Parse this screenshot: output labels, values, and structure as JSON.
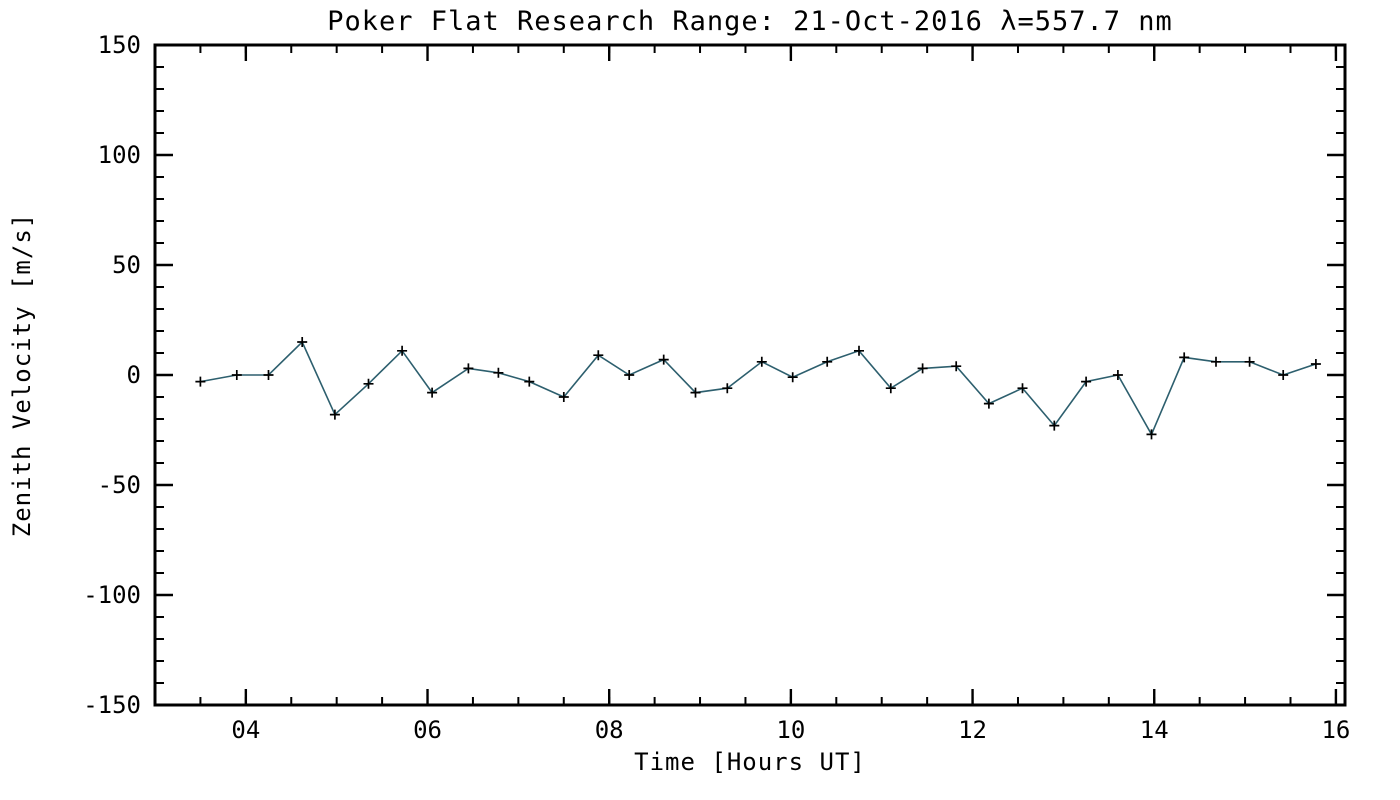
{
  "figure": {
    "background": "#ffffff"
  },
  "chart_data": {
    "type": "line",
    "title": "Poker Flat Research Range: 21-Oct-2016 λ=557.7 nm",
    "xlabel": "Time [Hours UT]",
    "ylabel": "Zenith Velocity [m/s]",
    "xlim": [
      3.0,
      16.1
    ],
    "ylim": [
      -150,
      150
    ],
    "grid": false,
    "legend": "none",
    "x_major_ticks": [
      4,
      6,
      8,
      10,
      12,
      14,
      16
    ],
    "x_tick_labels": [
      "04",
      "06",
      "08",
      "10",
      "12",
      "14",
      "16"
    ],
    "x_minor_step": 0.5,
    "y_major_ticks": [
      -150,
      -100,
      -50,
      0,
      50,
      100,
      150
    ],
    "y_tick_labels": [
      "-150",
      "-100",
      "-50",
      "0",
      "50",
      "100",
      "150"
    ],
    "y_minor_step": 10,
    "marker": "plus",
    "line_color": "#2d5f6e",
    "marker_color": "#000000",
    "axis_color": "#000000",
    "series": [
      {
        "name": "zenith_velocity",
        "points": [
          [
            3.5,
            -3
          ],
          [
            3.9,
            0
          ],
          [
            4.25,
            0
          ],
          [
            4.62,
            15
          ],
          [
            4.98,
            -18
          ],
          [
            5.35,
            -4
          ],
          [
            5.72,
            11
          ],
          [
            6.05,
            -8
          ],
          [
            6.45,
            3
          ],
          [
            6.78,
            1
          ],
          [
            7.12,
            -3
          ],
          [
            7.5,
            -10
          ],
          [
            7.88,
            9
          ],
          [
            8.22,
            0
          ],
          [
            8.6,
            7
          ],
          [
            8.95,
            -8
          ],
          [
            9.3,
            -6
          ],
          [
            9.68,
            6
          ],
          [
            10.02,
            -1
          ],
          [
            10.4,
            6
          ],
          [
            10.75,
            11
          ],
          [
            11.1,
            -6
          ],
          [
            11.45,
            3
          ],
          [
            11.82,
            4
          ],
          [
            12.18,
            -13
          ],
          [
            12.55,
            -6
          ],
          [
            12.9,
            -23
          ],
          [
            13.25,
            -3
          ],
          [
            13.6,
            0
          ],
          [
            13.97,
            -27
          ],
          [
            14.33,
            8
          ],
          [
            14.68,
            6
          ],
          [
            15.05,
            6
          ],
          [
            15.42,
            0
          ],
          [
            15.78,
            5
          ]
        ]
      }
    ]
  }
}
